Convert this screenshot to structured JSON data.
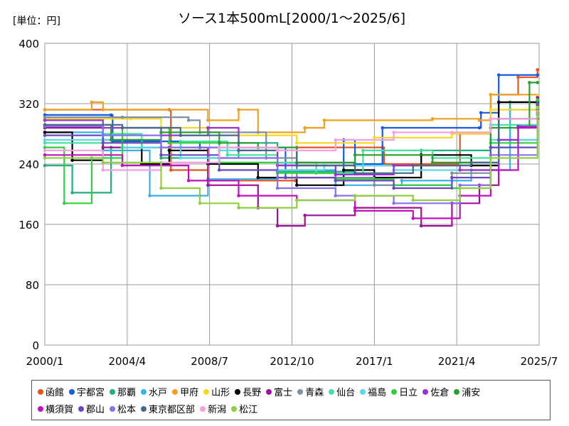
{
  "chart_data": {
    "type": "line",
    "title": "ソース1本500mL[2000/1～2025/6]",
    "unit_label": "[単位：円]",
    "xlabel": "",
    "ylabel": "",
    "ylim": [
      0,
      400
    ],
    "y_ticks": [
      0,
      80,
      160,
      240,
      320,
      400
    ],
    "x_ticks": [
      "2000/1",
      "2004/4",
      "2008/7",
      "2012/10",
      "2017/1",
      "2021/4",
      "2025/7"
    ],
    "grid": true,
    "legend_position": "bottom",
    "series": [
      {
        "name": "函館",
        "color": "#e8541e",
        "points": [
          [
            "2000/1",
            312
          ],
          [
            "2006/6",
            312
          ],
          [
            "2006/7",
            232
          ],
          [
            "2008/6",
            218
          ],
          [
            "2012/12",
            218
          ],
          [
            "2013/1",
            262
          ],
          [
            "2017/6",
            262
          ],
          [
            "2017/7",
            240
          ],
          [
            "2021/6",
            280
          ],
          [
            "2023/1",
            332
          ],
          [
            "2024/6",
            355
          ],
          [
            "2025/6",
            365
          ]
        ]
      },
      {
        "name": "宇都宮",
        "color": "#1a5ae0",
        "points": [
          [
            "2000/1",
            305
          ],
          [
            "2003/6",
            305
          ],
          [
            "2003/7",
            270
          ],
          [
            "2008/1",
            262
          ],
          [
            "2012/6",
            222
          ],
          [
            "2015/6",
            272
          ],
          [
            "2016/1",
            240
          ],
          [
            "2017/6",
            288
          ],
          [
            "2022/6",
            288
          ],
          [
            "2022/7",
            308
          ],
          [
            "2023/6",
            358
          ],
          [
            "2025/6",
            358
          ]
        ]
      },
      {
        "name": "那覇",
        "color": "#22b07a",
        "points": [
          [
            "2000/1",
            238
          ],
          [
            "2001/6",
            202
          ],
          [
            "2003/6",
            262
          ],
          [
            "2006/1",
            248
          ],
          [
            "2010/1",
            268
          ],
          [
            "2011/6",
            268
          ],
          [
            "2012/1",
            230
          ],
          [
            "2016/1",
            238
          ],
          [
            "2019/6",
            258
          ],
          [
            "2023/1",
            262
          ],
          [
            "2024/1",
            322
          ],
          [
            "2025/6",
            318
          ]
        ]
      },
      {
        "name": "水戸",
        "color": "#3ab0e8",
        "points": [
          [
            "2000/1",
            282
          ],
          [
            "2003/1",
            258
          ],
          [
            "2005/6",
            198
          ],
          [
            "2008/1",
            198
          ],
          [
            "2008/6",
            220
          ],
          [
            "2012/1",
            232
          ],
          [
            "2015/1",
            212
          ],
          [
            "2018/6",
            218
          ],
          [
            "2022/1",
            232
          ],
          [
            "2024/1",
            312
          ],
          [
            "2025/6",
            305
          ]
        ]
      },
      {
        "name": "甲府",
        "color": "#f0a020",
        "points": [
          [
            "2000/1",
            312
          ],
          [
            "2002/6",
            322
          ],
          [
            "2003/1",
            312
          ],
          [
            "2008/6",
            298
          ],
          [
            "2010/1",
            312
          ],
          [
            "2011/1",
            282
          ],
          [
            "2013/6",
            288
          ],
          [
            "2014/6",
            298
          ],
          [
            "2020/1",
            300
          ],
          [
            "2022/6",
            298
          ],
          [
            "2023/1",
            332
          ],
          [
            "2025/6",
            318
          ]
        ]
      },
      {
        "name": "山形",
        "color": "#f5d820",
        "points": [
          [
            "2000/1",
            300
          ],
          [
            "2004/6",
            300
          ],
          [
            "2006/1",
            288
          ],
          [
            "2010/1",
            278
          ],
          [
            "2013/1",
            268
          ],
          [
            "2017/1",
            275
          ],
          [
            "2021/1",
            280
          ],
          [
            "2023/1",
            312
          ],
          [
            "2025/6",
            330
          ]
        ]
      },
      {
        "name": "長野",
        "color": "#000000",
        "points": [
          [
            "2000/1",
            282
          ],
          [
            "2001/6",
            245
          ],
          [
            "2003/1",
            272
          ],
          [
            "2005/1",
            240
          ],
          [
            "2006/6",
            258
          ],
          [
            "2008/6",
            240
          ],
          [
            "2011/1",
            222
          ],
          [
            "2013/1",
            212
          ],
          [
            "2015/6",
            232
          ],
          [
            "2017/1",
            222
          ],
          [
            "2019/6",
            252
          ],
          [
            "2022/1",
            238
          ],
          [
            "2023/6",
            322
          ],
          [
            "2025/6",
            322
          ]
        ]
      },
      {
        "name": "富士",
        "color": "#a0109a",
        "points": [
          [
            "2000/1",
            288
          ],
          [
            "2003/1",
            262
          ],
          [
            "2006/6",
            262
          ],
          [
            "2008/6",
            212
          ],
          [
            "2011/1",
            182
          ],
          [
            "2012/1",
            158
          ],
          [
            "2013/6",
            172
          ],
          [
            "2016/1",
            182
          ],
          [
            "2019/6",
            158
          ],
          [
            "2021/1",
            188
          ],
          [
            "2022/6",
            212
          ],
          [
            "2023/6",
            272
          ],
          [
            "2025/6",
            328
          ]
        ]
      },
      {
        "name": "青森",
        "color": "#8090a0",
        "points": [
          [
            "2000/1",
            302
          ],
          [
            "2004/1",
            302
          ],
          [
            "2007/6",
            298
          ],
          [
            "2008/1",
            282
          ],
          [
            "2011/6",
            248
          ],
          [
            "2013/1",
            222
          ],
          [
            "2017/1",
            212
          ],
          [
            "2021/1",
            228
          ],
          [
            "2023/1",
            300
          ],
          [
            "2025/6",
            308
          ]
        ]
      },
      {
        "name": "仙台",
        "color": "#40e0a0",
        "points": [
          [
            "2000/1",
            268
          ],
          [
            "2003/1",
            280
          ],
          [
            "2005/1",
            262
          ],
          [
            "2007/1",
            270
          ],
          [
            "2009/6",
            252
          ],
          [
            "2012/1",
            242
          ],
          [
            "2014/1",
            228
          ],
          [
            "2016/6",
            258
          ],
          [
            "2020/1",
            248
          ],
          [
            "2023/1",
            292
          ],
          [
            "2025/6",
            312
          ]
        ]
      },
      {
        "name": "福島",
        "color": "#58d8e8",
        "points": [
          [
            "2000/1",
            272
          ],
          [
            "2004/1",
            262
          ],
          [
            "2007/1",
            248
          ],
          [
            "2009/1",
            258
          ],
          [
            "2012/1",
            232
          ],
          [
            "2014/6",
            238
          ],
          [
            "2018/1",
            232
          ],
          [
            "2021/6",
            242
          ],
          [
            "2023/1",
            272
          ],
          [
            "2025/6",
            318
          ]
        ]
      },
      {
        "name": "日立",
        "color": "#30d040",
        "points": [
          [
            "2000/1",
            262
          ],
          [
            "2001/1",
            188
          ],
          [
            "2002/6",
            248
          ],
          [
            "2004/1",
            288
          ],
          [
            "2006/6",
            268
          ],
          [
            "2009/1",
            242
          ],
          [
            "2012/1",
            228
          ],
          [
            "2015/1",
            220
          ],
          [
            "2018/1",
            212
          ],
          [
            "2021/1",
            208
          ],
          [
            "2023/1",
            268
          ],
          [
            "2025/6",
            325
          ]
        ]
      },
      {
        "name": "佐倉",
        "color": "#9a30d8",
        "points": [
          [
            "2000/1",
            298
          ],
          [
            "2003/1",
            288
          ],
          [
            "2006/1",
            278
          ],
          [
            "2008/6",
            288
          ],
          [
            "2010/1",
            262
          ],
          [
            "2012/1",
            238
          ],
          [
            "2015/1",
            226
          ],
          [
            "2018/1",
            238
          ],
          [
            "2021/6",
            232
          ],
          [
            "2023/6",
            272
          ],
          [
            "2024/6",
            290
          ],
          [
            "2025/6",
            300
          ]
        ]
      },
      {
        "name": "浦安",
        "color": "#28a030",
        "points": [
          [
            "2000/1",
            292
          ],
          [
            "2003/6",
            272
          ],
          [
            "2006/1",
            282
          ],
          [
            "2009/1",
            268
          ],
          [
            "2011/1",
            262
          ],
          [
            "2013/1",
            242
          ],
          [
            "2016/1",
            252
          ],
          [
            "2020/1",
            242
          ],
          [
            "2023/1",
            288
          ],
          [
            "2025/1",
            348
          ],
          [
            "2025/6",
            348
          ]
        ]
      },
      {
        "name": "横須賀",
        "color": "#c010c0",
        "points": [
          [
            "2000/1",
            252
          ],
          [
            "2004/1",
            238
          ],
          [
            "2007/6",
            218
          ],
          [
            "2010/1",
            198
          ],
          [
            "2013/1",
            192
          ],
          [
            "2016/1",
            178
          ],
          [
            "2019/1",
            168
          ],
          [
            "2021/6",
            198
          ],
          [
            "2023/1",
            232
          ],
          [
            "2024/6",
            288
          ],
          [
            "2025/6",
            318
          ]
        ]
      },
      {
        "name": "郡山",
        "color": "#6a48c0",
        "points": [
          [
            "2000/1",
            278
          ],
          [
            "2003/1",
            268
          ],
          [
            "2006/1",
            252
          ],
          [
            "2009/1",
            232
          ],
          [
            "2012/1",
            222
          ],
          [
            "2015/1",
            218
          ],
          [
            "2018/1",
            208
          ],
          [
            "2021/1",
            222
          ],
          [
            "2023/1",
            262
          ],
          [
            "2025/6",
            312
          ]
        ]
      },
      {
        "name": "松本",
        "color": "#8a70f0",
        "points": [
          [
            "2000/1",
            290
          ],
          [
            "2003/1",
            278
          ],
          [
            "2006/1",
            262
          ],
          [
            "2009/1",
            248
          ],
          [
            "2012/1",
            208
          ],
          [
            "2015/1",
            198
          ],
          [
            "2018/1",
            188
          ],
          [
            "2021/6",
            212
          ],
          [
            "2023/1",
            252
          ],
          [
            "2025/6",
            320
          ]
        ]
      },
      {
        "name": "東京都区部",
        "color": "#486a88",
        "points": [
          [
            "2000/1",
            292
          ],
          [
            "2004/1",
            288
          ],
          [
            "2007/1",
            278
          ],
          [
            "2010/1",
            258
          ],
          [
            "2013/1",
            238
          ],
          [
            "2016/1",
            228
          ],
          [
            "2019/1",
            238
          ],
          [
            "2022/1",
            242
          ],
          [
            "2023/6",
            300
          ],
          [
            "2025/6",
            320
          ]
        ]
      },
      {
        "name": "新潟",
        "color": "#f5a0e0",
        "points": [
          [
            "2000/1",
            258
          ],
          [
            "2003/1",
            232
          ],
          [
            "2006/1",
            242
          ],
          [
            "2009/1",
            262
          ],
          [
            "2012/1",
            258
          ],
          [
            "2015/1",
            272
          ],
          [
            "2018/1",
            282
          ],
          [
            "2021/1",
            282
          ],
          [
            "2023/1",
            300
          ],
          [
            "2025/6",
            310
          ]
        ]
      },
      {
        "name": "松江",
        "color": "#90d040",
        "points": [
          [
            "2000/1",
            248
          ],
          [
            "2003/1",
            242
          ],
          [
            "2006/1",
            208
          ],
          [
            "2008/1",
            188
          ],
          [
            "2010/1",
            182
          ],
          [
            "2013/1",
            192
          ],
          [
            "2016/1",
            198
          ],
          [
            "2019/1",
            192
          ],
          [
            "2021/6",
            208
          ],
          [
            "2023/1",
            248
          ],
          [
            "2025/6",
            315
          ]
        ]
      }
    ]
  }
}
